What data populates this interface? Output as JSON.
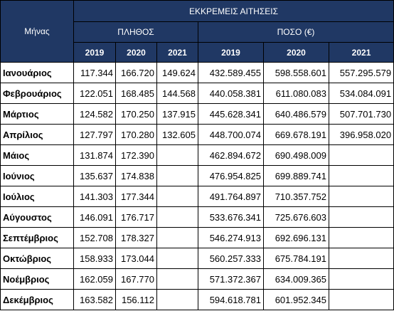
{
  "header": {
    "month_label": "Μήνας",
    "group_title": "ΕΚΚΡΕΜΕΙΣ ΑΙΤΗΣΕΙΣ",
    "count_title": "ΠΛΗΘΟΣ",
    "amount_title": "ΠΟΣΟ (€)",
    "count_years": [
      "2019",
      "2020",
      "2021"
    ],
    "amount_years": [
      "2019",
      "2020",
      "2021"
    ]
  },
  "rows": [
    {
      "month": "Ιανουάριος",
      "c2019": "117.344",
      "c2020": "166.720",
      "c2021": "149.624",
      "a2019": "432.589.455",
      "a2020": "598.558.601",
      "a2021": "557.295.579"
    },
    {
      "month": "Φεβρουάριος",
      "c2019": "122.051",
      "c2020": "168.485",
      "c2021": "144.568",
      "a2019": "440.058.381",
      "a2020": "611.080.083",
      "a2021": "534.084.091"
    },
    {
      "month": "Μάρτιος",
      "c2019": "124.582",
      "c2020": "170.250",
      "c2021": "137.915",
      "a2019": "445.628.341",
      "a2020": "640.486.579",
      "a2021": "507.701.730"
    },
    {
      "month": "Απρίλιος",
      "c2019": "127.797",
      "c2020": "170.280",
      "c2021": "132.605",
      "a2019": "448.700.074",
      "a2020": "669.678.191",
      "a2021": "396.958.020"
    },
    {
      "month": "Μάιος",
      "c2019": "131.874",
      "c2020": "172.390",
      "c2021": "",
      "a2019": "462.894.672",
      "a2020": "690.498.009",
      "a2021": ""
    },
    {
      "month": "Ιούνιος",
      "c2019": "135.637",
      "c2020": "174.838",
      "c2021": "",
      "a2019": "476.954.825",
      "a2020": "699.889.741",
      "a2021": ""
    },
    {
      "month": "Ιούλιος",
      "c2019": "141.303",
      "c2020": "177.344",
      "c2021": "",
      "a2019": "491.764.897",
      "a2020": "710.357.752",
      "a2021": ""
    },
    {
      "month": "Αύγουστος",
      "c2019": "146.091",
      "c2020": "176.717",
      "c2021": "",
      "a2019": "533.676.341",
      "a2020": "725.676.603",
      "a2021": ""
    },
    {
      "month": "Σεπτέμβριος",
      "c2019": "152.708",
      "c2020": "178.327",
      "c2021": "",
      "a2019": "546.274.913",
      "a2020": "692.696.131",
      "a2021": ""
    },
    {
      "month": "Οκτώβριος",
      "c2019": "158.933",
      "c2020": "173.044",
      "c2021": "",
      "a2019": "560.257.333",
      "a2020": "675.784.191",
      "a2021": ""
    },
    {
      "month": "Νοέμβριος",
      "c2019": "162.059",
      "c2020": "167.770",
      "c2021": "",
      "a2019": "571.372.367",
      "a2020": "634.009.365",
      "a2021": ""
    },
    {
      "month": "Δεκέμβριος",
      "c2019": "163.582",
      "c2020": "156.112",
      "c2021": "",
      "a2019": "594.618.781",
      "a2020": "601.952.345",
      "a2021": ""
    }
  ]
}
